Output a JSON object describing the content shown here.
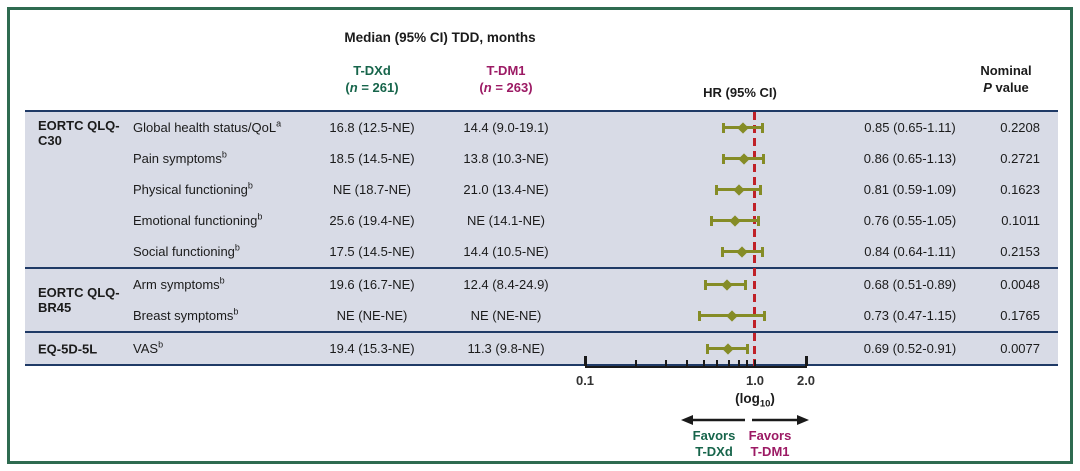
{
  "header": {
    "title": "Median (95% CI) TDD, months",
    "tdxd": {
      "name": "T-DXd",
      "n_open": "(",
      "n_italic": "n",
      "n_rest": " = 261)"
    },
    "tdm1": {
      "name": "T-DM1",
      "n_open": "(",
      "n_italic": "n",
      "n_rest": " = 263)"
    },
    "hr": "HR (95% CI)",
    "p_line1": "Nominal",
    "p_italic": "P",
    "p_rest": " value"
  },
  "sections": [
    {
      "scale": "EORTC QLQ-C30",
      "rows": [
        {
          "label": "Global health status/QoL",
          "sup": "a",
          "tdxd": "16.8 (12.5-NE)",
          "tdm1": "14.4 (9.0-19.1)",
          "hr_text": "0.85 (0.65-1.11)",
          "p": "0.2208"
        },
        {
          "label": "Pain symptoms",
          "sup": "b",
          "tdxd": "18.5 (14.5-NE)",
          "tdm1": "13.8 (10.3-NE)",
          "hr_text": "0.86 (0.65-1.13)",
          "p": "0.2721"
        },
        {
          "label": "Physical functioning",
          "sup": "b",
          "tdxd": "NE (18.7-NE)",
          "tdm1": "21.0 (13.4-NE)",
          "hr_text": "0.81 (0.59-1.09)",
          "p": "0.1623"
        },
        {
          "label": "Emotional functioning",
          "sup": "b",
          "tdxd": "25.6 (19.4-NE)",
          "tdm1": "NE (14.1-NE)",
          "hr_text": "0.76 (0.55-1.05)",
          "p": "0.1011"
        },
        {
          "label": "Social functioning",
          "sup": "b",
          "tdxd": "17.5 (14.5-NE)",
          "tdm1": "14.4 (10.5-NE)",
          "hr_text": "0.84 (0.64-1.11)",
          "p": "0.2153"
        }
      ]
    },
    {
      "scale": "EORTC QLQ-BR45",
      "rows": [
        {
          "label": "Arm symptoms",
          "sup": "b",
          "tdxd": "19.6 (16.7-NE)",
          "tdm1": "12.4 (8.4-24.9)",
          "hr_text": "0.68 (0.51-0.89)",
          "p": "0.0048"
        },
        {
          "label": "Breast symptoms",
          "sup": "b",
          "tdxd": "NE (NE-NE)",
          "tdm1": "NE (NE-NE)",
          "hr_text": "0.73 (0.47-1.15)",
          "p": "0.1765"
        }
      ]
    },
    {
      "scale": "EQ-5D-5L",
      "rows": [
        {
          "label": "VAS",
          "sup": "b",
          "tdxd": "19.4 (15.3-NE)",
          "tdm1": "11.3 (9.8-NE)",
          "hr_text": "0.69 (0.52-0.91)",
          "p": "0.0077"
        }
      ]
    }
  ],
  "axis": {
    "tick_labels": [
      "0.1",
      "1.0",
      "2.0"
    ],
    "log_open": "(log",
    "log_sub": "10",
    "log_close": ")"
  },
  "favors": {
    "left": {
      "line1": "Favors",
      "line2": "T-DXd"
    },
    "right": {
      "line1": "Favors",
      "line2": "T-DM1"
    }
  },
  "colors": {
    "tdxd_green": "#17654b",
    "tdm1_magenta": "#9c1a64",
    "marker_olive": "#858c26",
    "reference_red": "#c02128",
    "divider_navy": "#1f3a66",
    "row_background": "#d8dbe6",
    "frame_green": "#2e6b50"
  },
  "chart_data": {
    "type": "forest",
    "title": "Median (95% CI) TDD, months",
    "x_scale": "log10",
    "xlim": [
      0.1,
      2.0
    ],
    "x_ticks": [
      0.1,
      1.0,
      2.0
    ],
    "minor_ticks": [
      0.2,
      0.3,
      0.4,
      0.5,
      0.6,
      0.7,
      0.8,
      0.9,
      1.0
    ],
    "reference_line": 1.0,
    "x_note": "(log10)",
    "favors_left": "Favors T-DXd",
    "favors_right": "Favors T-DM1",
    "rows": [
      {
        "group": "EORTC QLQ-C30",
        "endpoint": "Global health status/QoL",
        "hr": 0.85,
        "ci": [
          0.65,
          1.11
        ],
        "p": 0.2208
      },
      {
        "group": "EORTC QLQ-C30",
        "endpoint": "Pain symptoms",
        "hr": 0.86,
        "ci": [
          0.65,
          1.13
        ],
        "p": 0.2721
      },
      {
        "group": "EORTC QLQ-C30",
        "endpoint": "Physical functioning",
        "hr": 0.81,
        "ci": [
          0.59,
          1.09
        ],
        "p": 0.1623
      },
      {
        "group": "EORTC QLQ-C30",
        "endpoint": "Emotional functioning",
        "hr": 0.76,
        "ci": [
          0.55,
          1.05
        ],
        "p": 0.1011
      },
      {
        "group": "EORTC QLQ-C30",
        "endpoint": "Social functioning",
        "hr": 0.84,
        "ci": [
          0.64,
          1.11
        ],
        "p": 0.2153
      },
      {
        "group": "EORTC QLQ-BR45",
        "endpoint": "Arm symptoms",
        "hr": 0.68,
        "ci": [
          0.51,
          0.89
        ],
        "p": 0.0048
      },
      {
        "group": "EORTC QLQ-BR45",
        "endpoint": "Breast symptoms",
        "hr": 0.73,
        "ci": [
          0.47,
          1.15
        ],
        "p": 0.1765
      },
      {
        "group": "EQ-5D-5L",
        "endpoint": "VAS",
        "hr": 0.69,
        "ci": [
          0.52,
          0.91
        ],
        "p": 0.0077
      }
    ]
  }
}
